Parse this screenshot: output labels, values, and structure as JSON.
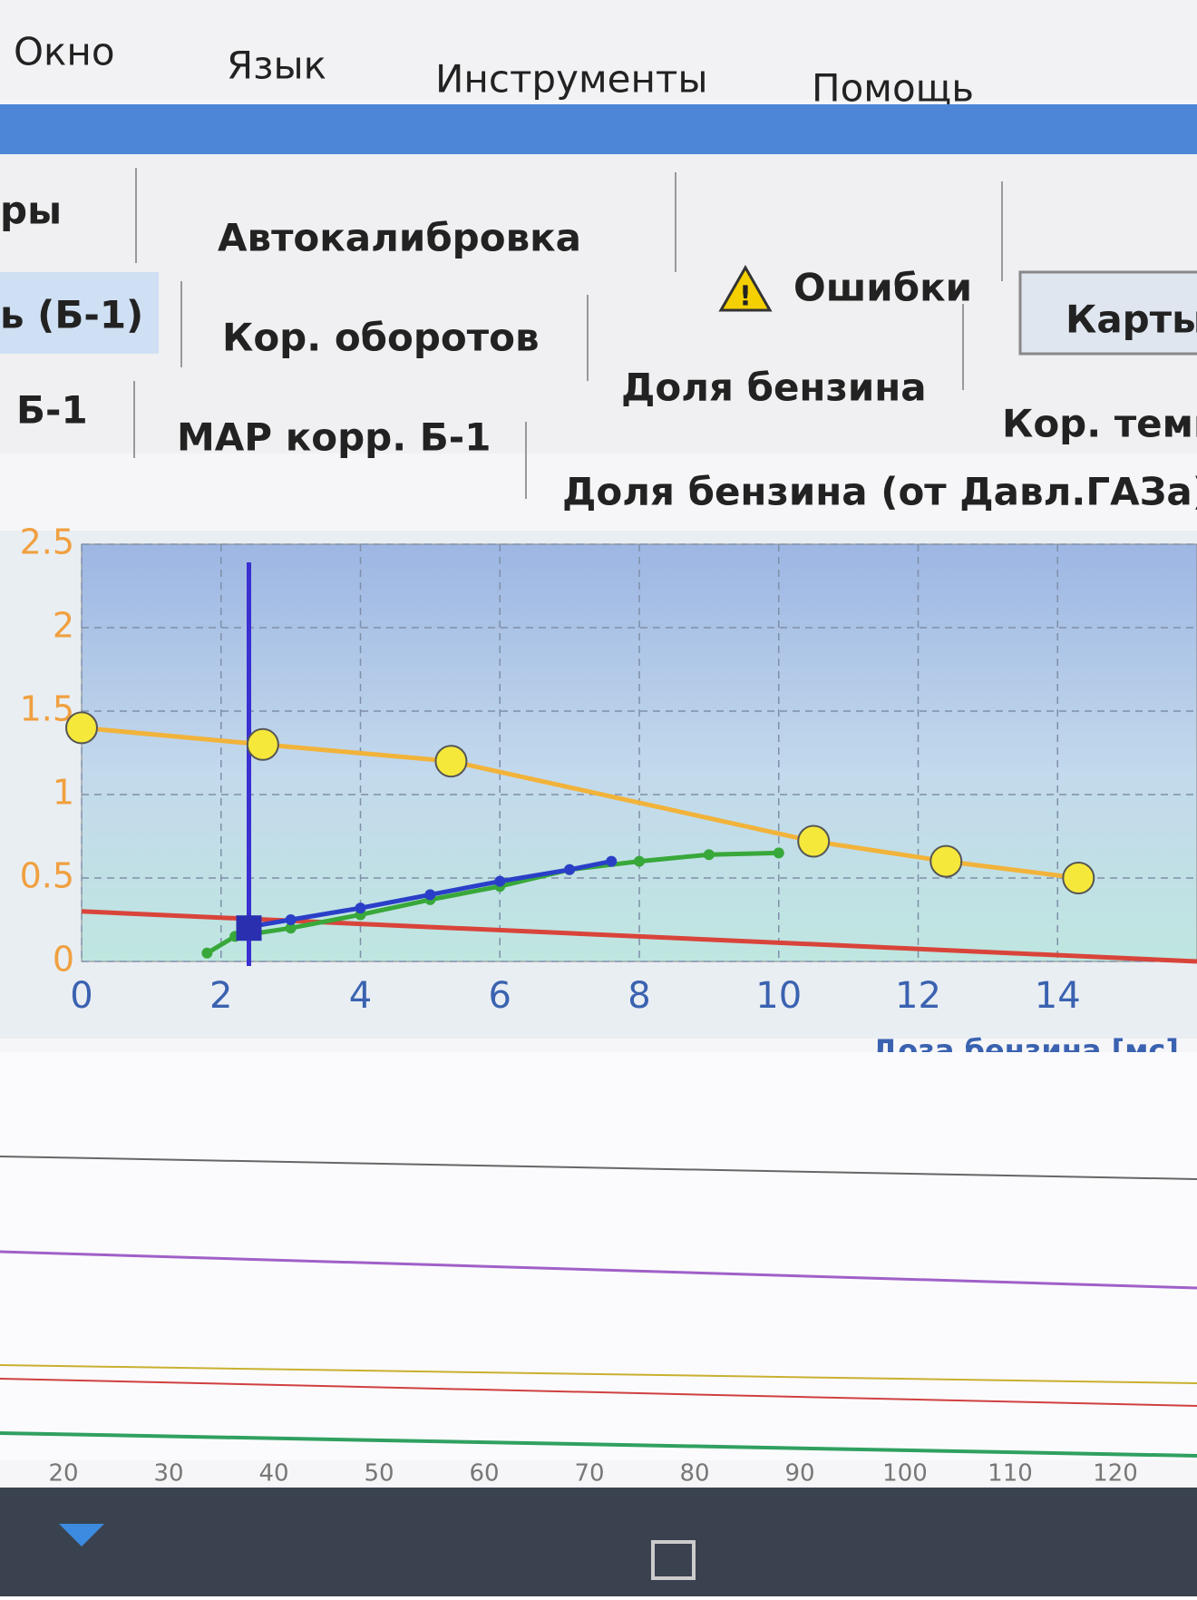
{
  "menu": [
    "Окно",
    "Язык",
    "Инструменты",
    "Помощь"
  ],
  "tab_rows": [
    [
      "ры",
      "Автокалибровка",
      "Ошибки",
      "Карты"
    ],
    [
      "ь (Б-1)",
      "Кор. оборотов",
      "Доля бензина",
      "Кор. темп"
    ],
    [
      "Б-1",
      "MAP корр. Б-1",
      "Доля бензина (от Давл.ГАЗа)"
    ]
  ],
  "chart_data": {
    "type": "line",
    "x_label": "Доза бензина [мс]",
    "xlim": [
      0,
      16
    ],
    "xticks": [
      0,
      2,
      4,
      6,
      8,
      10,
      12,
      14
    ],
    "ylim": [
      0,
      2.5
    ],
    "yticks": [
      0,
      0.5,
      1,
      1.5,
      2,
      2.5
    ],
    "grid": true,
    "series": [
      {
        "color": "#f2b33a",
        "marker_color": "#f5e83a",
        "x": [
          0,
          2.6,
          5.3,
          10.5,
          12.4,
          14.3
        ],
        "values": [
          1.4,
          1.3,
          1.2,
          0.72,
          0.6,
          0.5
        ]
      },
      {
        "color": "#d9443a",
        "x": [
          0,
          16
        ],
        "values": [
          0.3,
          0.0
        ]
      },
      {
        "color": "#38a83a",
        "x": [
          1.8,
          2.2,
          3,
          4,
          5,
          6,
          7,
          8,
          9,
          10
        ],
        "values": [
          0.05,
          0.15,
          0.2,
          0.28,
          0.37,
          0.45,
          0.55,
          0.6,
          0.64,
          0.65
        ]
      },
      {
        "color": "#2a3fc8",
        "x": [
          2.3,
          3,
          4,
          5,
          6,
          7,
          7.6
        ],
        "values": [
          0.2,
          0.25,
          0.32,
          0.4,
          0.48,
          0.55,
          0.6
        ]
      }
    ]
  },
  "timeline": {
    "ticks": [
      20,
      30,
      40,
      50,
      60,
      70,
      80,
      90,
      100,
      110,
      120
    ]
  }
}
